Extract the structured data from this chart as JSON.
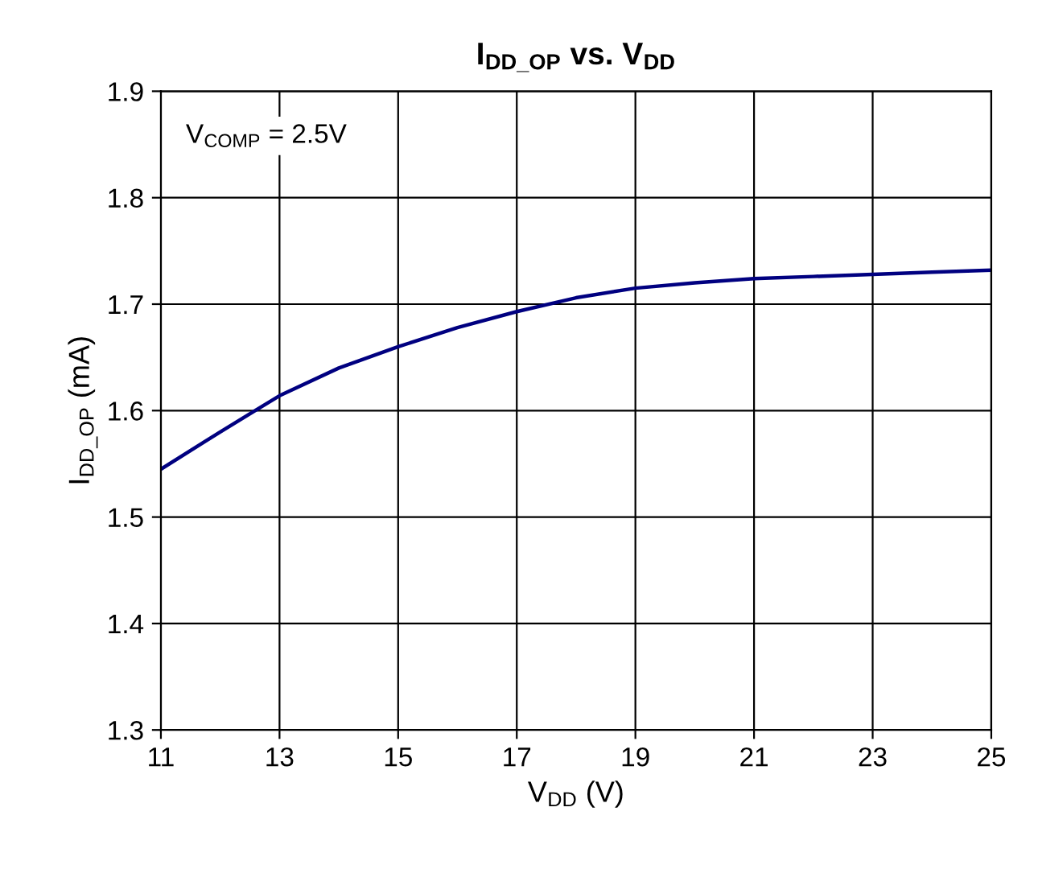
{
  "chart_data": {
    "type": "line",
    "title": "I$_{DD_OP}$ vs. V$_{DD}$",
    "xlabel": "V$_{DD}$ (V)",
    "ylabel": "I$_{DD_OP}$ (mA)",
    "annotations": [
      "V$_{COMP}$ = 2.5V"
    ],
    "x": [
      11,
      12,
      13,
      14,
      15,
      16,
      17,
      18,
      19,
      20,
      21,
      22,
      23,
      24,
      25
    ],
    "series": [
      {
        "color": "#000080",
        "values": [
          1.545,
          1.58,
          1.614,
          1.64,
          1.66,
          1.678,
          1.693,
          1.706,
          1.715,
          1.72,
          1.724,
          1.726,
          1.728,
          1.73,
          1.732
        ]
      }
    ],
    "xlim": [
      11,
      25
    ],
    "xticks": [
      11,
      13,
      15,
      17,
      19,
      21,
      23,
      25
    ],
    "ylim": [
      1.3,
      1.9
    ],
    "yticks": [
      1.3,
      1.4,
      1.5,
      1.6,
      1.7,
      1.8,
      1.9
    ],
    "grid": true,
    "legend": false,
    "marker": "none",
    "line_style": "solid"
  }
}
